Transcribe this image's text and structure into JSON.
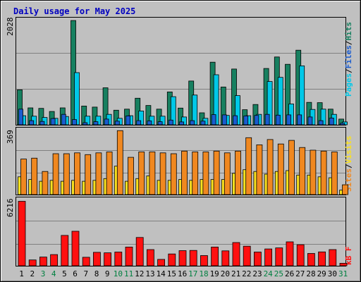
{
  "chart_data": [
    {
      "type": "bar",
      "title": "Daily usage for May 2025",
      "panel": "hits-files-pages",
      "y_max_label": "2028",
      "ylim": [
        0,
        2028
      ],
      "side_label": {
        "pages": "Pages",
        "files": "Files",
        "hits": "Hits",
        "sep": "/"
      },
      "categories": [
        "1",
        "2",
        "3",
        "4",
        "5",
        "6",
        "7",
        "8",
        "9",
        "10",
        "11",
        "12",
        "13",
        "14",
        "15",
        "16",
        "17",
        "18",
        "19",
        "20",
        "21",
        "22",
        "23",
        "24",
        "25",
        "26",
        "27",
        "28",
        "29",
        "30",
        "31"
      ],
      "series": [
        {
          "name": "Hits",
          "values": [
            670,
            325,
            315,
            255,
            325,
            2000,
            360,
            340,
            710,
            280,
            300,
            510,
            370,
            300,
            630,
            320,
            840,
            230,
            1200,
            725,
            1070,
            290,
            390,
            1080,
            1300,
            1160,
            1430,
            430,
            425,
            300,
            110
          ]
        },
        {
          "name": "Files",
          "values": [
            175,
            165,
            140,
            125,
            160,
            1000,
            165,
            165,
            200,
            125,
            175,
            265,
            165,
            165,
            540,
            150,
            570,
            125,
            960,
            180,
            560,
            175,
            200,
            830,
            910,
            400,
            1130,
            295,
            300,
            200,
            55
          ]
        },
        {
          "name": "Pages",
          "values": [
            300,
            80,
            65,
            120,
            200,
            100,
            40,
            60,
            110,
            70,
            170,
            80,
            75,
            60,
            90,
            55,
            80,
            70,
            195,
            190,
            175,
            170,
            180,
            200,
            185,
            190,
            190,
            150,
            80,
            130,
            30
          ]
        }
      ],
      "colors": {
        "hits": "#178060",
        "files": "#00c8e8",
        "pages": "#1a5ccf"
      }
    },
    {
      "type": "bar",
      "panel": "sites-visits",
      "y_max_label": "369",
      "ylim": [
        0,
        369
      ],
      "side_label": {
        "sites": "Sites",
        "visits": "Visits",
        "sep": "/"
      },
      "categories": [
        "1",
        "2",
        "3",
        "4",
        "5",
        "6",
        "7",
        "8",
        "9",
        "10",
        "11",
        "12",
        "13",
        "14",
        "15",
        "16",
        "17",
        "18",
        "19",
        "20",
        "21",
        "22",
        "23",
        "24",
        "25",
        "26",
        "27",
        "28",
        "29",
        "30",
        "31"
      ],
      "series": [
        {
          "name": "Visits",
          "values": [
            200,
            205,
            130,
            230,
            230,
            235,
            225,
            235,
            240,
            360,
            210,
            240,
            240,
            235,
            230,
            245,
            240,
            240,
            245,
            235,
            245,
            320,
            280,
            310,
            285,
            305,
            265,
            250,
            245,
            240,
            55
          ]
        },
        {
          "name": "Sites",
          "values": [
            100,
            85,
            75,
            80,
            75,
            80,
            75,
            80,
            90,
            160,
            75,
            90,
            105,
            80,
            80,
            85,
            80,
            85,
            85,
            85,
            120,
            140,
            130,
            115,
            130,
            135,
            110,
            110,
            100,
            95,
            25
          ]
        }
      ],
      "colors": {
        "visits": "#f08820",
        "sites": "#f8e020"
      }
    },
    {
      "type": "bar",
      "panel": "kb",
      "y_max_label": "6216",
      "ylim": [
        0,
        6216
      ],
      "side_label": {
        "kb": "kB F"
      },
      "categories": [
        "1",
        "2",
        "3",
        "4",
        "5",
        "6",
        "7",
        "8",
        "9",
        "10",
        "11",
        "12",
        "13",
        "14",
        "15",
        "16",
        "17",
        "18",
        "19",
        "20",
        "21",
        "22",
        "23",
        "24",
        "25",
        "26",
        "27",
        "28",
        "29",
        "30",
        "31"
      ],
      "series": [
        {
          "name": "KBytes",
          "values": [
            6050,
            550,
            820,
            1050,
            2850,
            3240,
            800,
            1260,
            1220,
            1290,
            1760,
            2660,
            1520,
            600,
            1110,
            1420,
            1440,
            960,
            1760,
            1400,
            2180,
            1840,
            1290,
            1580,
            1680,
            2250,
            1980,
            1160,
            1300,
            1520,
            240
          ]
        }
      ],
      "colors": {
        "kb": "#ff1010"
      }
    }
  ],
  "x_labels": {
    "days": [
      "1",
      "2",
      "3",
      "4",
      "5",
      "6",
      "7",
      "8",
      "9",
      "10",
      "11",
      "12",
      "13",
      "14",
      "15",
      "16",
      "17",
      "18",
      "19",
      "20",
      "21",
      "22",
      "23",
      "24",
      "25",
      "26",
      "27",
      "28",
      "29",
      "30",
      "31"
    ],
    "weekend_days": [
      "3",
      "4",
      "10",
      "11",
      "17",
      "18",
      "24",
      "25",
      "31"
    ],
    "weekday_color": "#000000",
    "weekend_color": "#008040"
  }
}
